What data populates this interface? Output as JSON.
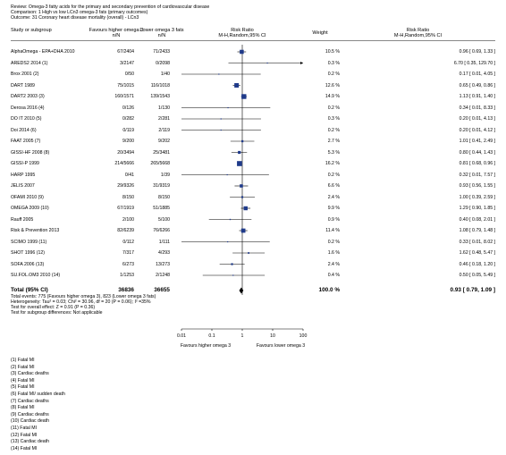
{
  "header": {
    "review": "Review: Omega-3 fatty acids for the primary and secondary prevention of cardiovascular disease",
    "comparison": "Comparison: 1 High vs low LCn3 omega-3 fats (primary outcomes)",
    "outcome": "Outcome: 31 Coronary heart disease mortality (overall) - LCn3"
  },
  "columns": {
    "study": "Study or subgroup",
    "exp": "Favours higher omega 3",
    "exp_sub": "n/N",
    "ctrl": "Lower omega 3 fats",
    "ctrl_sub": "n/N",
    "rr": "Risk Ratio",
    "rr_sub": "M-H,Random,95% CI",
    "weight": "Weight",
    "rr2": "Risk Ratio",
    "rr2_sub": "M-H,Random,95% CI"
  },
  "total": {
    "label": "Total (95% CI)",
    "exp": "36836",
    "ctrl": "36655",
    "weight": "100.0 %",
    "ci": "0.93 [ 0.79, 1.09 ]",
    "rr": 0.93,
    "lo": 0.79,
    "hi": 1.09,
    "events": "Total events: 775 (Favours higher omega 3), 823 (Lower omega 3 fats)",
    "heterogeneity": "Heterogeneity: Tau² = 0.03; Chi² = 30.96, df = 20 (P = 0.06); I² =35%",
    "overall": "Test for overall effect: Z = 0.91 (P = 0.36)",
    "subgroup": "Test for subgroup differences: Not applicable"
  },
  "axis": {
    "ticks": [
      "0.01",
      "0.1",
      "1",
      "10",
      "100"
    ],
    "left_label": "Favours higher omega 3",
    "right_label": "Favours lower omega 3"
  },
  "footnotes": [
    "(1) Fatal MI",
    "(2) Fatal MI",
    "(3) Cardiac deaths",
    "(4) Fatal MI",
    "(5) Fatal MI",
    "(6) Fatal MI/ sudden death",
    "(7) Cardiac deaths",
    "(8) Fatal MI",
    "(9) Cardiac deaths",
    "(10) Cardiac death",
    "(11) Fatal MI",
    "(12) Fatal MI",
    "(13) Cardiac death",
    "(14) Fatal MI"
  ],
  "chart_data": {
    "type": "forest",
    "scale": "log",
    "xlim": [
      0.01,
      100
    ],
    "studies": [
      {
        "name": "AlphaOmega - EPA+DHA 2010",
        "exp": "67/2404",
        "ctrl": "71/2433",
        "weight": "10.5 %",
        "ci": "0.96 [ 0.69, 1.33 ]",
        "rr": 0.96,
        "lo": 0.69,
        "hi": 1.33,
        "w": 10.5
      },
      {
        "name": "AREDS2 2014 (1)",
        "exp": "3/2147",
        "ctrl": "0/2098",
        "weight": "0.3 %",
        "ci": "6.70 [ 0.35, 129.70 ]",
        "rr": 6.7,
        "lo": 0.35,
        "hi": 129.7,
        "w": 0.3
      },
      {
        "name": "Brox 2001 (2)",
        "exp": "0/50",
        "ctrl": "1/40",
        "weight": "0.2 %",
        "ci": "0.17 [ 0.01, 4.05 ]",
        "rr": 0.17,
        "lo": 0.01,
        "hi": 4.05,
        "w": 0.2
      },
      {
        "name": "DART 1989",
        "exp": "75/1015",
        "ctrl": "116/1018",
        "weight": "12.6 %",
        "ci": "0.65 [ 0.49, 0.86 ]",
        "rr": 0.65,
        "lo": 0.49,
        "hi": 0.86,
        "w": 12.6
      },
      {
        "name": "DART2 2003 (3)",
        "exp": "160/1571",
        "ctrl": "139/1543",
        "weight": "14.9 %",
        "ci": "1.13 [ 0.91, 1.40 ]",
        "rr": 1.13,
        "lo": 0.91,
        "hi": 1.4,
        "w": 14.9
      },
      {
        "name": "Derosa 2016 (4)",
        "exp": "0/126",
        "ctrl": "1/130",
        "weight": "0.2 %",
        "ci": "0.34 [ 0.01, 8.33 ]",
        "rr": 0.34,
        "lo": 0.01,
        "hi": 8.33,
        "w": 0.2
      },
      {
        "name": "DO IT 2010 (5)",
        "exp": "0/282",
        "ctrl": "2/281",
        "weight": "0.3 %",
        "ci": "0.20 [ 0.01, 4.13 ]",
        "rr": 0.2,
        "lo": 0.01,
        "hi": 4.13,
        "w": 0.3
      },
      {
        "name": "Doi 2014 (6)",
        "exp": "0/119",
        "ctrl": "2/119",
        "weight": "0.2 %",
        "ci": "0.20 [ 0.01, 4.12 ]",
        "rr": 0.2,
        "lo": 0.01,
        "hi": 4.12,
        "w": 0.2
      },
      {
        "name": "FAAT 2005 (7)",
        "exp": "9/200",
        "ctrl": "9/202",
        "weight": "2.7 %",
        "ci": "1.01 [ 0.41, 2.49 ]",
        "rr": 1.01,
        "lo": 0.41,
        "hi": 2.49,
        "w": 2.7
      },
      {
        "name": "GISSI-HF 2008 (8)",
        "exp": "20/3494",
        "ctrl": "25/3481",
        "weight": "5.3 %",
        "ci": "0.80 [ 0.44, 1.43 ]",
        "rr": 0.8,
        "lo": 0.44,
        "hi": 1.43,
        "w": 5.3
      },
      {
        "name": "GISSI-P 1999",
        "exp": "214/5666",
        "ctrl": "265/5668",
        "weight": "16.2 %",
        "ci": "0.81 [ 0.68, 0.96 ]",
        "rr": 0.81,
        "lo": 0.68,
        "hi": 0.96,
        "w": 16.2
      },
      {
        "name": "HARP 1995",
        "exp": "0/41",
        "ctrl": "1/39",
        "weight": "0.2 %",
        "ci": "0.32 [ 0.01, 7.57 ]",
        "rr": 0.32,
        "lo": 0.01,
        "hi": 7.57,
        "w": 0.2
      },
      {
        "name": "JELIS 2007",
        "exp": "29/9326",
        "ctrl": "31/9319",
        "weight": "6.6 %",
        "ci": "0.93 [ 0.56, 1.55 ]",
        "rr": 0.93,
        "lo": 0.56,
        "hi": 1.55,
        "w": 6.6
      },
      {
        "name": "OFAMI 2010 (9)",
        "exp": "8/150",
        "ctrl": "8/150",
        "weight": "2.4 %",
        "ci": "1.00 [ 0.39, 2.59 ]",
        "rr": 1.0,
        "lo": 0.39,
        "hi": 2.59,
        "w": 2.4
      },
      {
        "name": "OMEGA 2009 (10)",
        "exp": "67/1919",
        "ctrl": "51/1885",
        "weight": "9.9 %",
        "ci": "1.29 [ 0.90, 1.85 ]",
        "rr": 1.29,
        "lo": 0.9,
        "hi": 1.85,
        "w": 9.9
      },
      {
        "name": "Rauff 2005",
        "exp": "2/100",
        "ctrl": "5/100",
        "weight": "0.9 %",
        "ci": "0.40 [ 0.08, 2.01 ]",
        "rr": 0.4,
        "lo": 0.08,
        "hi": 2.01,
        "w": 0.9
      },
      {
        "name": "Risk & Prevention 2013",
        "exp": "82/6239",
        "ctrl": "76/6266",
        "weight": "11.4 %",
        "ci": "1.08 [ 0.79, 1.48 ]",
        "rr": 1.08,
        "lo": 0.79,
        "hi": 1.48,
        "w": 11.4
      },
      {
        "name": "SCIMO 1999 (11)",
        "exp": "0/112",
        "ctrl": "1/111",
        "weight": "0.2 %",
        "ci": "0.33 [ 0.01, 8.02 ]",
        "rr": 0.33,
        "lo": 0.01,
        "hi": 8.02,
        "w": 0.2
      },
      {
        "name": "SHOT 1996 (12)",
        "exp": "7/317",
        "ctrl": "4/293",
        "weight": "1.6 %",
        "ci": "1.62 [ 0.48, 5.47 ]",
        "rr": 1.62,
        "lo": 0.48,
        "hi": 5.47,
        "w": 1.6
      },
      {
        "name": "SOFA 2006 (13)",
        "exp": "6/273",
        "ctrl": "13/273",
        "weight": "2.4 %",
        "ci": "0.46 [ 0.18, 1.20 ]",
        "rr": 0.46,
        "lo": 0.18,
        "hi": 1.2,
        "w": 2.4
      },
      {
        "name": "SU.FOL.OM3 2010 (14)",
        "exp": "1/1253",
        "ctrl": "2/1248",
        "weight": "0.4 %",
        "ci": "0.50 [ 0.05, 5.49 ]",
        "rr": 0.5,
        "lo": 0.05,
        "hi": 5.49,
        "w": 0.4
      }
    ]
  }
}
